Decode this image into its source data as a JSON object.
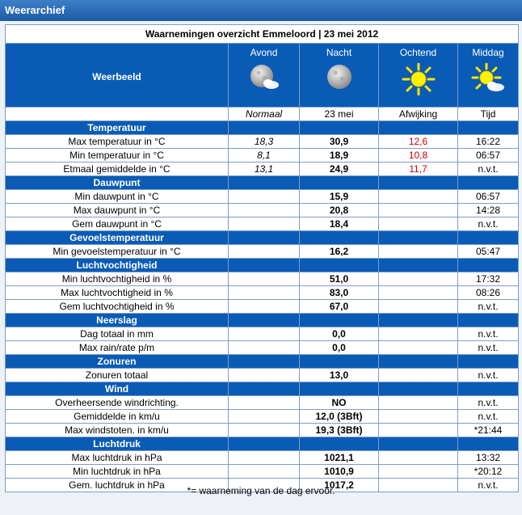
{
  "app": {
    "title": "Weerarchief"
  },
  "caption": "Waarnemingen overzicht Emmeloord | 23 mei 2012",
  "header": {
    "label": "Weerbeeld",
    "columns": [
      {
        "title": "Avond",
        "icon": "moon-cloud-icon"
      },
      {
        "title": "Nacht",
        "icon": "moon-icon"
      },
      {
        "title": "Ochtend",
        "icon": "sun-icon"
      },
      {
        "title": "Middag",
        "icon": "sun-cloud-icon"
      }
    ]
  },
  "subheader": {
    "normaal": "Normaal",
    "date": "23 mei",
    "afwijking": "Afwijking",
    "tijd": "Tijd"
  },
  "sections": [
    {
      "title": "Temperatuur",
      "rows": [
        {
          "label": "Max temperatuur in °C",
          "normal": "18,3",
          "value": "30,9",
          "deviation": "12,6",
          "time": "16:22"
        },
        {
          "label": "Min temperatuur in °C",
          "normal": "8,1",
          "value": "18,9",
          "deviation": "10,8",
          "time": "06:57"
        },
        {
          "label": "Etmaal gemiddelde in °C",
          "normal": "13,1",
          "value": "24,9",
          "deviation": "11,7",
          "time": "n.v.t."
        }
      ]
    },
    {
      "title": "Dauwpunt",
      "rows": [
        {
          "label": "Min dauwpunt in °C",
          "normal": "",
          "value": "15,9",
          "deviation": "",
          "time": "06:57"
        },
        {
          "label": "Max dauwpunt in °C",
          "normal": "",
          "value": "20,8",
          "deviation": "",
          "time": "14:28"
        },
        {
          "label": "Gem dauwpunt in °C",
          "normal": "",
          "value": "18,4",
          "deviation": "",
          "time": "n.v.t."
        }
      ]
    },
    {
      "title": "Gevoelstemperatuur",
      "rows": [
        {
          "label": "Min gevoelstemperatuur in °C",
          "normal": "",
          "value": "16,2",
          "deviation": "",
          "time": "05:47"
        }
      ]
    },
    {
      "title": "Luchtvochtigheid",
      "rows": [
        {
          "label": "Min luchtvochtigheid in %",
          "normal": "",
          "value": "51,0",
          "deviation": "",
          "time": "17:32"
        },
        {
          "label": "Max luchtvochtigheid in %",
          "normal": "",
          "value": "83,0",
          "deviation": "",
          "time": "08:26"
        },
        {
          "label": "Gem luchtvochtigheid in %",
          "normal": "",
          "value": "67,0",
          "deviation": "",
          "time": "n.v.t."
        }
      ]
    },
    {
      "title": "Neerslag",
      "rows": [
        {
          "label": "Dag totaal in mm",
          "normal": "",
          "value": "0,0",
          "deviation": "",
          "time": "n.v.t."
        },
        {
          "label": "Max rain/rate p/m",
          "normal": "",
          "value": "0,0",
          "deviation": "",
          "time": "n.v.t."
        }
      ]
    },
    {
      "title": "Zonuren",
      "rows": [
        {
          "label": "Zonuren totaal",
          "normal": "",
          "value": "13,0",
          "deviation": "",
          "time": "n.v.t."
        }
      ]
    },
    {
      "title": "Wind",
      "rows": [
        {
          "label": "Overheersende windrichting.",
          "normal": "",
          "value": "NO",
          "deviation": "",
          "time": "n.v.t."
        },
        {
          "label": "Gemiddelde in km/u",
          "normal": "",
          "value": "12,0 (3Bft)",
          "deviation": "",
          "time": "n.v.t."
        },
        {
          "label": "Max windstoten. in km/u",
          "normal": "",
          "value": "19,3 (3Bft)",
          "deviation": "",
          "time": "*21:44"
        }
      ]
    },
    {
      "title": "Luchtdruk",
      "rows": [
        {
          "label": "Max luchtdruk in hPa",
          "normal": "",
          "value": "1021,1",
          "deviation": "",
          "time": "13:32"
        },
        {
          "label": "Min luchtdruk in hPa",
          "normal": "",
          "value": "1010,9",
          "deviation": "",
          "time": "*20:12"
        },
        {
          "label": "Gem. luchtdruk in hPa",
          "normal": "",
          "value": "1017,2",
          "deviation": "",
          "time": "n.v.t."
        }
      ]
    }
  ],
  "footnote": "*= waarneming van de dag ervoor.",
  "colors": {
    "header_blue": "#0a5bb5",
    "deviation_red": "#cc0000"
  }
}
